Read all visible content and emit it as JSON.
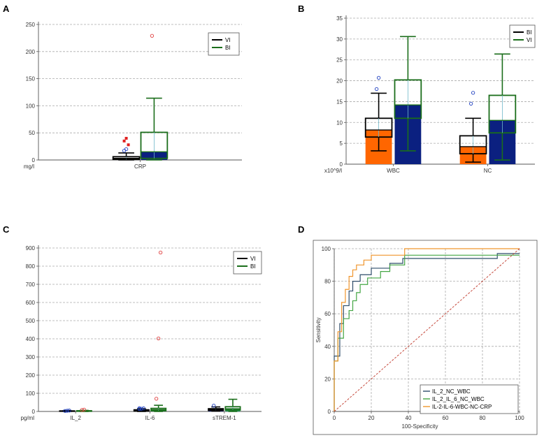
{
  "chart_data": [
    {
      "panel": "A",
      "type": "box",
      "unit_label": "mg/l",
      "ylim": [
        0,
        250
      ],
      "yticks": [
        0,
        50,
        100,
        150,
        200,
        250
      ],
      "categories": [
        "CRP"
      ],
      "legend": [
        "VI",
        "BI"
      ],
      "legend_position": "top-right",
      "grid": true,
      "series": [
        {
          "name": "VI",
          "color": "#000000",
          "fill": "#8b8b3a",
          "boxes": [
            {
              "category": "CRP",
              "min": 0,
              "q1": 1,
              "median": 3,
              "q3": 6,
              "max": 13,
              "outliers": [
                17,
                20,
                28,
                35,
                40
              ]
            }
          ]
        },
        {
          "name": "BI",
          "color": "#1b6e1b",
          "fill": "#0b2080",
          "boxes": [
            {
              "category": "CRP",
              "min": 0,
              "q1": 3,
              "median": 15,
              "q3": 51,
              "max": 114,
              "outliers": [
                229
              ]
            }
          ]
        }
      ]
    },
    {
      "panel": "B",
      "type": "box",
      "unit_label": "x10^9/l",
      "ylim": [
        0,
        35
      ],
      "yticks": [
        0,
        5,
        10,
        15,
        20,
        25,
        30,
        35
      ],
      "categories": [
        "WBC",
        "NC"
      ],
      "legend": [
        "BI",
        "VI"
      ],
      "legend_position": "top-right",
      "grid": true,
      "series": [
        {
          "name": "BI",
          "color": "#000000",
          "fill": "#ff6600",
          "boxes": [
            {
              "category": "WBC",
              "min": 3.2,
              "q1": 6.5,
              "median": 8.2,
              "q3": 11,
              "max": 17,
              "outliers": [
                18,
                20.7
              ]
            },
            {
              "category": "NC",
              "min": 0.5,
              "q1": 2.5,
              "median": 4.2,
              "q3": 6.8,
              "max": 11,
              "outliers": [
                14.5,
                17.1
              ]
            }
          ]
        },
        {
          "name": "VI",
          "color": "#1b6e1b",
          "fill": "#0b2080",
          "boxes": [
            {
              "category": "WBC",
              "min": 3.2,
              "q1": 11,
              "median": 14.2,
              "q3": 20.2,
              "max": 30.6,
              "outliers": []
            },
            {
              "category": "NC",
              "min": 1,
              "q1": 7.5,
              "median": 10.5,
              "q3": 16.5,
              "max": 26.4,
              "outliers": []
            }
          ]
        }
      ]
    },
    {
      "panel": "C",
      "type": "box",
      "unit_label": "pg/ml",
      "ylim": [
        0,
        900
      ],
      "yticks": [
        0,
        100,
        200,
        300,
        400,
        500,
        600,
        700,
        800,
        900
      ],
      "categories": [
        "IL_2",
        "IL-6",
        "sTREM-1"
      ],
      "legend": [
        "VI",
        "BI"
      ],
      "legend_position": "top-right",
      "grid": true,
      "series": [
        {
          "name": "VI",
          "color": "#000000",
          "fill": "#1d2a8c",
          "boxes": [
            {
              "category": "IL_2",
              "min": 0,
              "q1": 1,
              "median": 2,
              "q3": 3,
              "max": 5,
              "outliers": [
                3,
                4,
                5
              ]
            },
            {
              "category": "IL-6",
              "min": 0,
              "q1": 2,
              "median": 5,
              "q3": 9,
              "max": 15,
              "outliers": [
                13,
                15,
                17,
                18
              ]
            },
            {
              "category": "sTREM-1",
              "min": 2,
              "q1": 6,
              "median": 10,
              "q3": 15,
              "max": 25,
              "outliers": [
                32
              ]
            }
          ]
        },
        {
          "name": "BI",
          "color": "#1b6e1b",
          "fill": "#27a36b",
          "boxes": [
            {
              "category": "IL_2",
              "min": 0,
              "q1": 1,
              "median": 2,
              "q3": 4,
              "max": 6,
              "outliers": [
                8,
                10
              ]
            },
            {
              "category": "IL-6",
              "min": 0,
              "q1": 4,
              "median": 10,
              "q3": 17,
              "max": 34,
              "outliers": [
                70,
                402,
                875
              ]
            },
            {
              "category": "sTREM-1",
              "min": 0,
              "q1": 8,
              "median": 15,
              "q3": 26,
              "max": 67,
              "outliers": []
            }
          ]
        }
      ]
    },
    {
      "panel": "D",
      "type": "line",
      "xlabel": "100-Specificity",
      "ylabel": "Sensitivity",
      "xlim": [
        0,
        100
      ],
      "ylim": [
        0,
        100
      ],
      "xticks": [
        0,
        20,
        40,
        60,
        80,
        100
      ],
      "yticks": [
        0,
        20,
        40,
        60,
        80,
        100
      ],
      "grid": true,
      "legend_position": "bottom-right",
      "series": [
        {
          "name": "IL_2_NC_WBC",
          "color": "#2e4d6b",
          "x": [
            0,
            0,
            3,
            3,
            5,
            5,
            8,
            8,
            10,
            10,
            14,
            14,
            20,
            20,
            30,
            30,
            37,
            37,
            88,
            88,
            100
          ],
          "y": [
            0,
            34,
            34,
            54,
            54,
            65,
            65,
            74,
            74,
            80,
            80,
            84,
            84,
            88,
            88,
            91,
            91,
            94,
            94,
            97,
            97
          ]
        },
        {
          "name": "IL_2_IL_6_NC_WBC",
          "color": "#44a644",
          "x": [
            0,
            0,
            2,
            2,
            5,
            5,
            8,
            8,
            10,
            10,
            12,
            12,
            14,
            14,
            18,
            18,
            25,
            25,
            30,
            30,
            38,
            38,
            100
          ],
          "y": [
            0,
            31,
            31,
            45,
            45,
            57,
            57,
            62,
            62,
            68,
            68,
            73,
            73,
            78,
            78,
            82,
            82,
            86,
            86,
            90,
            90,
            96,
            96
          ]
        },
        {
          "name": "IL-2-IL-6-WBC-NC-CRP",
          "color": "#f0962e",
          "x": [
            0,
            0,
            2,
            2,
            4,
            4,
            6,
            6,
            8,
            8,
            10,
            10,
            12,
            12,
            16,
            16,
            20,
            20,
            38,
            38,
            100
          ],
          "y": [
            0,
            31,
            31,
            49,
            49,
            67,
            67,
            75,
            75,
            83,
            83,
            87,
            87,
            90,
            90,
            93,
            93,
            96,
            96,
            100,
            100
          ]
        },
        {
          "name": "reference",
          "color": "#c0392b",
          "dashed": true,
          "x": [
            0,
            100
          ],
          "y": [
            0,
            100
          ]
        }
      ]
    }
  ]
}
